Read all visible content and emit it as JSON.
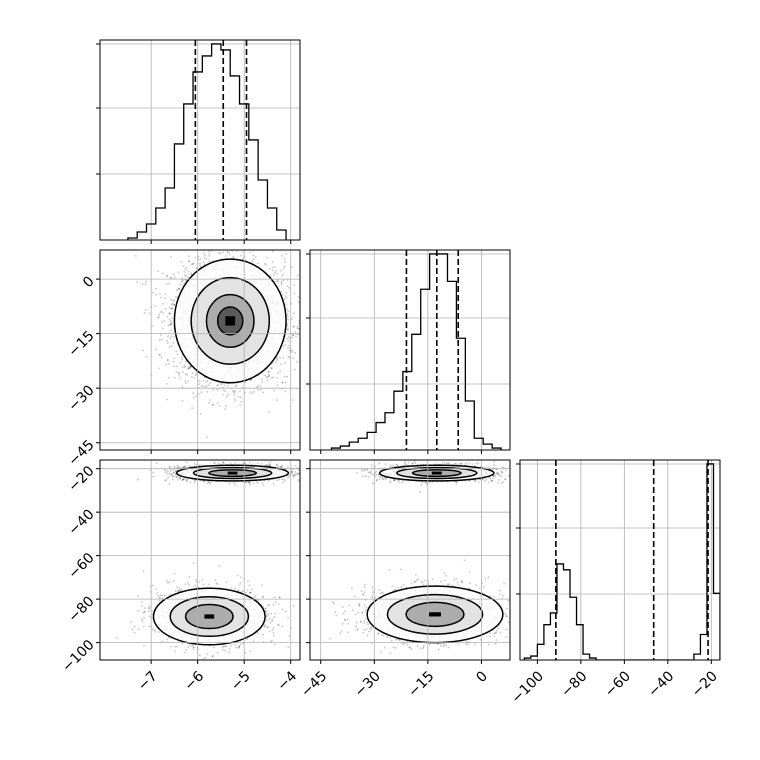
{
  "chart_data": {
    "type": "corner",
    "title": "",
    "grid": true,
    "parameters": [
      {
        "xlim": [
          -8.1,
          -3.8
        ],
        "ticks": [
          -7,
          -6,
          -5,
          -4
        ],
        "tick_labels": [
          "−7",
          "−6",
          "−5",
          "−4"
        ]
      },
      {
        "xlim": [
          -48,
          8
        ],
        "ticks": [
          -45,
          -30,
          -15,
          0
        ],
        "tick_labels": [
          "−45",
          "−30",
          "−15",
          "0"
        ]
      },
      {
        "xlim": [
          -108,
          -16
        ],
        "ticks": [
          -100,
          -80,
          -60,
          -40,
          -20
        ],
        "tick_labels": [
          "−100",
          "−80",
          "−60",
          "−40",
          "−20"
        ]
      }
    ],
    "diagonal": [
      {
        "type": "histogram",
        "bin_edges": [
          -7.5,
          -7.3,
          -7.1,
          -6.9,
          -6.7,
          -6.5,
          -6.3,
          -6.1,
          -5.9,
          -5.7,
          -5.5,
          -5.3,
          -5.1,
          -4.9,
          -4.7,
          -4.5,
          -4.3,
          -4.1
        ],
        "counts": [
          1,
          4,
          8,
          16,
          26,
          48,
          68,
          84,
          92,
          98,
          95,
          82,
          68,
          50,
          30,
          16,
          5
        ],
        "quantiles": [
          -6.05,
          -5.45,
          -4.95
        ]
      },
      {
        "type": "histogram",
        "bin_edges": [
          -42,
          -39.5,
          -37,
          -34.5,
          -32,
          -29.5,
          -27,
          -24.5,
          -22,
          -19.5,
          -17,
          -14.5,
          -12,
          -9.5,
          -7,
          -4.5,
          -2,
          0.5,
          3,
          5.5
        ],
        "counts": [
          1,
          2,
          4,
          6,
          9,
          14,
          19,
          30,
          40,
          59,
          82,
          100,
          100,
          86,
          57,
          25,
          6,
          3,
          1
        ],
        "quantiles": [
          -21,
          -12.5,
          -6.5
        ]
      },
      {
        "type": "histogram",
        "bin_edges": [
          -106,
          -103,
          -100,
          -97,
          -94,
          -91,
          -88,
          -85,
          -82,
          -79,
          -76,
          -73,
          -70,
          -67,
          -64,
          -61,
          -58,
          -55,
          -52,
          -49,
          -46,
          -43,
          -40,
          -37,
          -34,
          -31,
          -28,
          -25,
          -22,
          -19,
          -16
        ],
        "counts": [
          1,
          2,
          8,
          18,
          24,
          49,
          46,
          32,
          18,
          3,
          1,
          0,
          0,
          0,
          0,
          0,
          0,
          0,
          0,
          0,
          0,
          0,
          0,
          0,
          0,
          0,
          3,
          13,
          100,
          34
        ],
        "quantiles": [
          -91.5,
          -46.5,
          -21.5
        ]
      }
    ],
    "off_diagonal": [
      {
        "type": "scatter_density",
        "x_param": 0,
        "y_param": 1,
        "ylim": [
          -47,
          8
        ],
        "clusters": [
          {
            "center": [
              -5.3,
              -11.5
            ],
            "std": [
              0.6,
              8.5
            ],
            "weight": 1
          }
        ],
        "points": 3500,
        "contour_levels": 4
      },
      {
        "type": "scatter_density",
        "x_param": 0,
        "y_param": 2,
        "ylim": [
          -108,
          -16
        ],
        "clusters": [
          {
            "center": [
              -5.25,
              -22
            ],
            "std": [
              0.6,
              1.8
            ],
            "weight": 0.5
          },
          {
            "center": [
              -5.75,
              -88
            ],
            "std": [
              0.6,
              6.5
            ],
            "weight": 0.5
          }
        ],
        "points": 3500,
        "contour_levels": 3
      },
      {
        "type": "scatter_density",
        "x_param": 1,
        "y_param": 2,
        "ylim": [
          -108,
          -16
        ],
        "clusters": [
          {
            "center": [
              -12.5,
              -22
            ],
            "std": [
              8,
              1.8
            ],
            "weight": 0.5
          },
          {
            "center": [
              -13,
              -87
            ],
            "std": [
              9.5,
              6.5
            ],
            "weight": 0.5
          }
        ],
        "points": 3500,
        "contour_levels": 3
      }
    ],
    "y_axis_labels": {
      "row1": {
        "ticks": [
          0,
          -15,
          -30,
          -45
        ],
        "tick_labels": [
          "0",
          "−15",
          "−30",
          "−45"
        ]
      },
      "row2": {
        "ticks": [
          -20,
          -40,
          -60,
          -80,
          -100
        ],
        "tick_labels": [
          "−20",
          "−40",
          "−60",
          "−80",
          "−100"
        ]
      }
    }
  }
}
